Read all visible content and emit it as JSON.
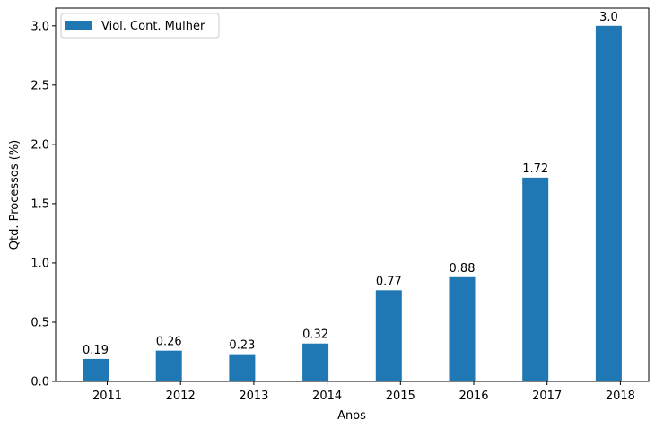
{
  "chart_data": {
    "type": "bar",
    "categories": [
      "2011",
      "2012",
      "2013",
      "2014",
      "2015",
      "2016",
      "2017",
      "2018"
    ],
    "series": [
      {
        "name": "Viol. Cont. Mulher",
        "values": [
          0.19,
          0.26,
          0.23,
          0.32,
          0.77,
          0.88,
          1.72,
          3.0
        ],
        "labels": [
          "0.19",
          "0.26",
          "0.23",
          "0.32",
          "0.77",
          "0.88",
          "1.72",
          "3.0"
        ],
        "color": "#1f77b4"
      }
    ],
    "xlabel": "Anos",
    "ylabel": "Qtd. Processos (%)",
    "ylim": [
      0,
      3.15
    ],
    "yticks": [
      "0.0",
      "0.5",
      "1.0",
      "1.5",
      "2.0",
      "2.5",
      "3.0"
    ],
    "grid": false,
    "legend_position": "top-left"
  }
}
